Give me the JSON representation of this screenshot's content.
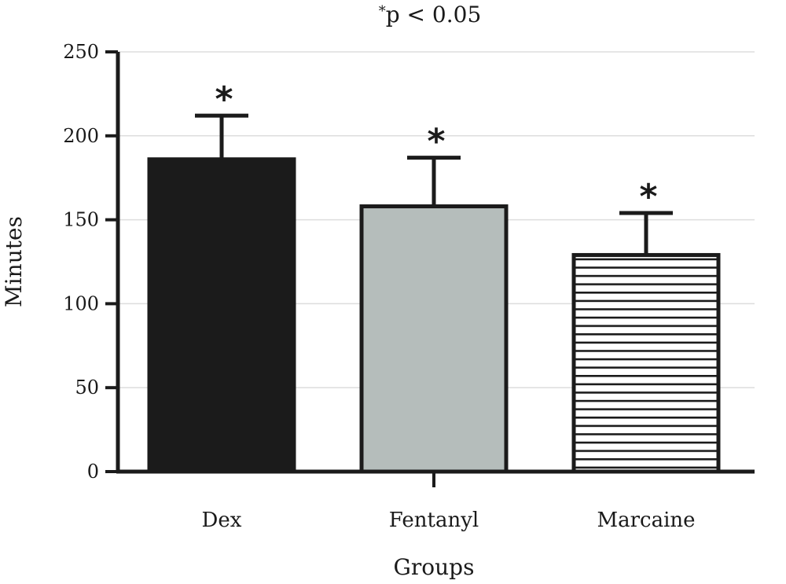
{
  "chart_data": {
    "type": "bar",
    "title_mark": "*",
    "title_text": "p < 0.05",
    "xlabel": "Groups",
    "ylabel": "Minutes",
    "ylim": [
      0,
      250
    ],
    "yticks": [
      "0",
      "50",
      "100",
      "150",
      "200",
      "250"
    ],
    "grid": true,
    "categories": [
      "Dex",
      "Fentanyl",
      "Marcaine"
    ],
    "values": [
      186,
      158,
      129
    ],
    "error_upper": [
      212,
      187,
      154
    ],
    "significance_marks": [
      "*",
      "*",
      "*"
    ],
    "bar_fills": [
      "#1b1b1b",
      "#b5bdbb",
      "striped"
    ],
    "colors": {
      "axis": "#1b1b1b",
      "grid": "#dddddd",
      "stripe": "#1b1b1b"
    }
  }
}
